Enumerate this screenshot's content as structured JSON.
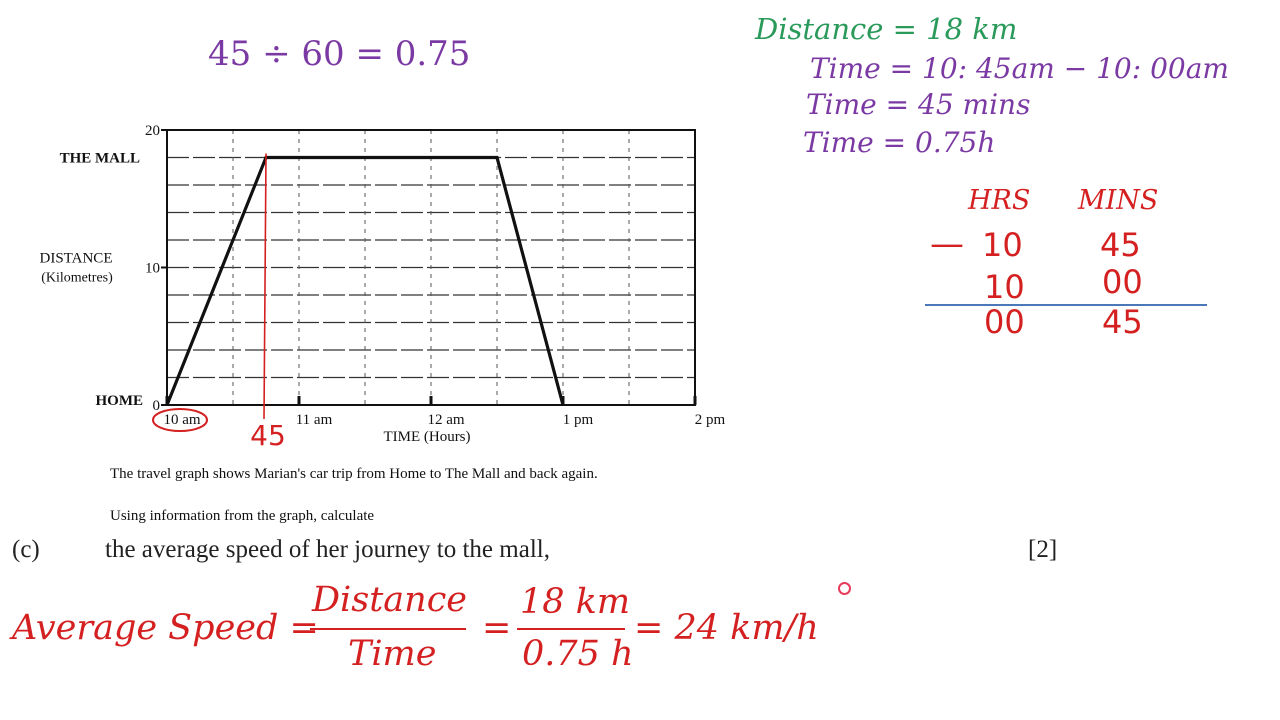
{
  "annotations": {
    "top_calc": "45 ÷ 60 = 0.75",
    "distance_line": "Distance = 18 km",
    "time_line1": "Time = 10: 45am − 10: 00am",
    "time_line2": "Time = 45 mins",
    "time_line3": "Time = 0.75h",
    "subtraction": {
      "header_hrs": "HRS",
      "header_mins": "MINS",
      "minus": "—",
      "row1": {
        "hrs": "10",
        "mins": "45"
      },
      "row2": {
        "hrs": "10",
        "mins": "00"
      },
      "result": {
        "hrs": "00",
        "mins": "45"
      }
    },
    "handwritten_45": "45"
  },
  "chart_data": {
    "type": "line",
    "title": "",
    "xlabel": "TIME (Hours)",
    "ylabel": "DISTANCE",
    "ylabel_sub": "(Kilometres)",
    "x_ticks": [
      "10 am",
      "11 am",
      "12 am",
      "1 pm",
      "2 pm"
    ],
    "x_tick_hours": [
      10,
      11,
      12,
      13,
      14
    ],
    "xlim_hours": [
      10,
      14
    ],
    "y_ticks": [
      "0",
      "10",
      "20"
    ],
    "y_tick_values": [
      0,
      10,
      20
    ],
    "ylim": [
      0,
      20
    ],
    "y_labels": [
      {
        "text": "HOME",
        "value": 0
      },
      {
        "text": "THE MALL",
        "value": 18
      }
    ],
    "grid": true,
    "series": [
      {
        "points_hours_km": [
          [
            10,
            0
          ],
          [
            10.75,
            18
          ],
          [
            12.5,
            18
          ],
          [
            13,
            0
          ]
        ]
      }
    ],
    "marker_x_hours": 10.75,
    "circled_tick": "10 am",
    "line_color": "#111111",
    "marker_color": "#d42020"
  },
  "question": {
    "caption1": "The travel graph shows Marian's car trip from Home to The Mall and back again.",
    "caption2": "Using information from the graph, calculate",
    "part": "(c)",
    "text": "the average speed of her journey to the mall,",
    "marks": "[2]"
  },
  "formula": {
    "lhs": "Average Speed =",
    "num1": "Distance",
    "den1": "Time",
    "eq2": "=",
    "num2": "18 km",
    "den2": "0.75 h",
    "rhs": "= 24 km/h"
  },
  "colors": {
    "purple": "#7b3aa3",
    "green": "#2a9a5a",
    "red": "#d42020",
    "rule_blue": "#4a78b8"
  }
}
